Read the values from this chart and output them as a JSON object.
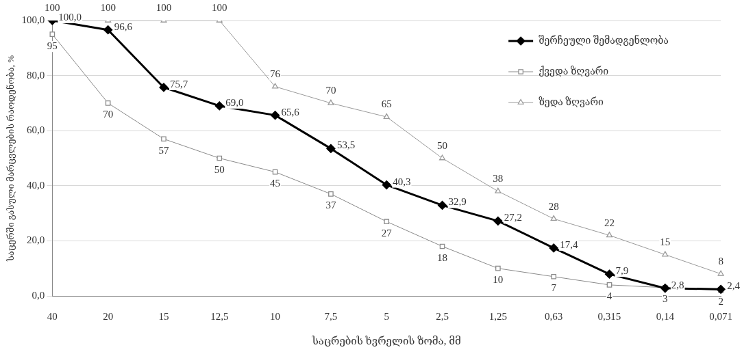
{
  "chart_data": {
    "type": "line",
    "xlabel": "საცრების ხვრელის ზომა, მმ",
    "ylabel": "საცერში გასული მარცვლების რაოდენობა, %",
    "categories": [
      "40",
      "20",
      "15",
      "12,5",
      "10",
      "7,5",
      "5",
      "2,5",
      "1,25",
      "0,63",
      "0,315",
      "0,14",
      "0,071"
    ],
    "ylim": [
      0,
      100
    ],
    "yticks": [
      {
        "value": 0,
        "label": "0,0"
      },
      {
        "value": 20,
        "label": "20,0"
      },
      {
        "value": 40,
        "label": "40,0"
      },
      {
        "value": 60,
        "label": "60,0"
      },
      {
        "value": 80,
        "label": "80,0"
      },
      {
        "value": 100,
        "label": "100,0"
      }
    ],
    "grid": "y",
    "legend": "top right",
    "line_style": "solid",
    "series": [
      {
        "name": "შერჩეული შემადგენლობა",
        "color": "#000000",
        "marker": "diamond",
        "values": [
          100,
          96.6,
          75.7,
          69,
          65.6,
          53.5,
          40.3,
          32.9,
          27.2,
          17.4,
          7.9,
          2.8,
          2.4
        ],
        "value_labels": [
          "100,0",
          "96,6",
          "75,7",
          "69,0",
          "65,6",
          "53,5",
          "40,3",
          "32,9",
          "27,2",
          "17,4",
          "7,9",
          "2,8",
          "2,4"
        ]
      },
      {
        "name": "ქვედა ზღვარი",
        "color": "#8a8a8a",
        "marker": "square",
        "values": [
          95,
          70,
          57,
          50,
          45,
          37,
          27,
          18,
          10,
          7,
          4,
          3,
          2
        ],
        "value_labels": [
          "95",
          "70",
          "57",
          "50",
          "45",
          "37",
          "27",
          "18",
          "10",
          "7",
          "4",
          "3",
          "2"
        ]
      },
      {
        "name": "ზედა ზღვარი",
        "color": "#9a9a9a",
        "marker": "triangle",
        "values": [
          100,
          100,
          100,
          100,
          76,
          70,
          65,
          50,
          38,
          28,
          22,
          15,
          8
        ],
        "value_labels": [
          "100",
          "100",
          "100",
          "100",
          "76",
          "70",
          "65",
          "50",
          "38",
          "28",
          "22",
          "15",
          "8"
        ]
      }
    ]
  }
}
